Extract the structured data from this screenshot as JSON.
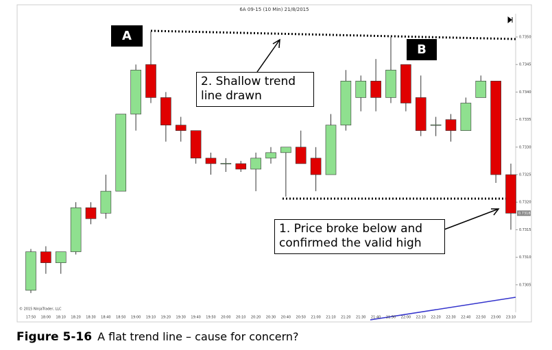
{
  "chart_data": {
    "type": "candlestick",
    "title": "6A 09-15 (10 Min)  21/8/2015",
    "copyright": "© 2015 NinjaTrader, LLC",
    "categories": [
      "17:50",
      "18:00",
      "18:10",
      "18:20",
      "18:30",
      "18:40",
      "18:50",
      "19:00",
      "19:10",
      "19:20",
      "19:30",
      "19:40",
      "19:50",
      "20:00",
      "20:10",
      "20:20",
      "20:30",
      "20:40",
      "20:50",
      "21:00",
      "21:10",
      "21:20",
      "21:30",
      "21:40",
      "21:50",
      "22:00",
      "22:10",
      "22:20",
      "22:30",
      "22:40",
      "22:50",
      "23:00",
      "23:10"
    ],
    "open": [
      0.7304,
      0.7311,
      0.7309,
      0.7311,
      0.7319,
      0.7318,
      0.7322,
      0.7336,
      0.7345,
      0.7339,
      0.7334,
      0.7333,
      0.7328,
      0.7327,
      0.7327,
      0.7326,
      0.7328,
      0.7329,
      0.733,
      0.7328,
      0.7325,
      0.7334,
      0.7339,
      0.7342,
      0.7339,
      0.7345,
      0.7339,
      0.7334,
      0.7335,
      0.7333,
      0.7339,
      0.7342,
      0.7325
    ],
    "high": [
      0.73115,
      0.7312,
      0.7311,
      0.732,
      0.732,
      0.7325,
      0.7336,
      0.7345,
      0.7351,
      0.734,
      0.73355,
      0.7333,
      0.7329,
      0.7328,
      0.73275,
      0.7329,
      0.733,
      0.733,
      0.7333,
      0.733,
      0.7336,
      0.7344,
      0.7343,
      0.7346,
      0.735,
      0.7345,
      0.7343,
      0.73355,
      0.7336,
      0.7339,
      0.7343,
      0.7342,
      0.7327
    ],
    "low": [
      0.73035,
      0.7307,
      0.7307,
      0.73105,
      0.7316,
      0.7317,
      0.7322,
      0.7333,
      0.7338,
      0.7331,
      0.7331,
      0.7327,
      0.7325,
      0.73255,
      0.73255,
      0.7322,
      0.7327,
      0.7321,
      0.7327,
      0.7322,
      0.7325,
      0.7333,
      0.73365,
      0.73365,
      0.7338,
      0.73365,
      0.7332,
      0.7332,
      0.7331,
      0.7333,
      0.7339,
      0.73235,
      0.7315
    ],
    "close": [
      0.7311,
      0.7309,
      0.7311,
      0.7319,
      0.7317,
      0.7322,
      0.7336,
      0.7344,
      0.7339,
      0.7334,
      0.7333,
      0.7328,
      0.7327,
      0.7327,
      0.7326,
      0.7328,
      0.7329,
      0.733,
      0.7327,
      0.7325,
      0.7334,
      0.7342,
      0.7342,
      0.7339,
      0.7344,
      0.7338,
      0.7333,
      0.7334,
      0.7333,
      0.7338,
      0.7342,
      0.7325,
      0.7318
    ],
    "up_color": "#8fe08f",
    "down_color": "#e00000",
    "ylim": [
      0.73,
      0.7355
    ],
    "yticks": [
      0.7305,
      {
        "value": 0.731,
        "label": "0.7310"
      },
      0.7315,
      {
        "value": 0.732,
        "label": "0.7320"
      },
      0.7325,
      {
        "value": 0.733,
        "label": "0.7330"
      },
      0.7335,
      {
        "value": 0.734,
        "label": "0.7340"
      },
      0.7345,
      {
        "value": 0.735,
        "label": "0.7350"
      }
    ],
    "last_price": {
      "value": 0.7318,
      "label": "0.7318"
    },
    "annotations": [
      "A",
      "B",
      "2. Shallow trend line drawn",
      "1. Price broke below and confirmed the valid high"
    ]
  },
  "caption": {
    "label": "Figure 5-16",
    "text": "A flat trend line – cause for concern?"
  }
}
